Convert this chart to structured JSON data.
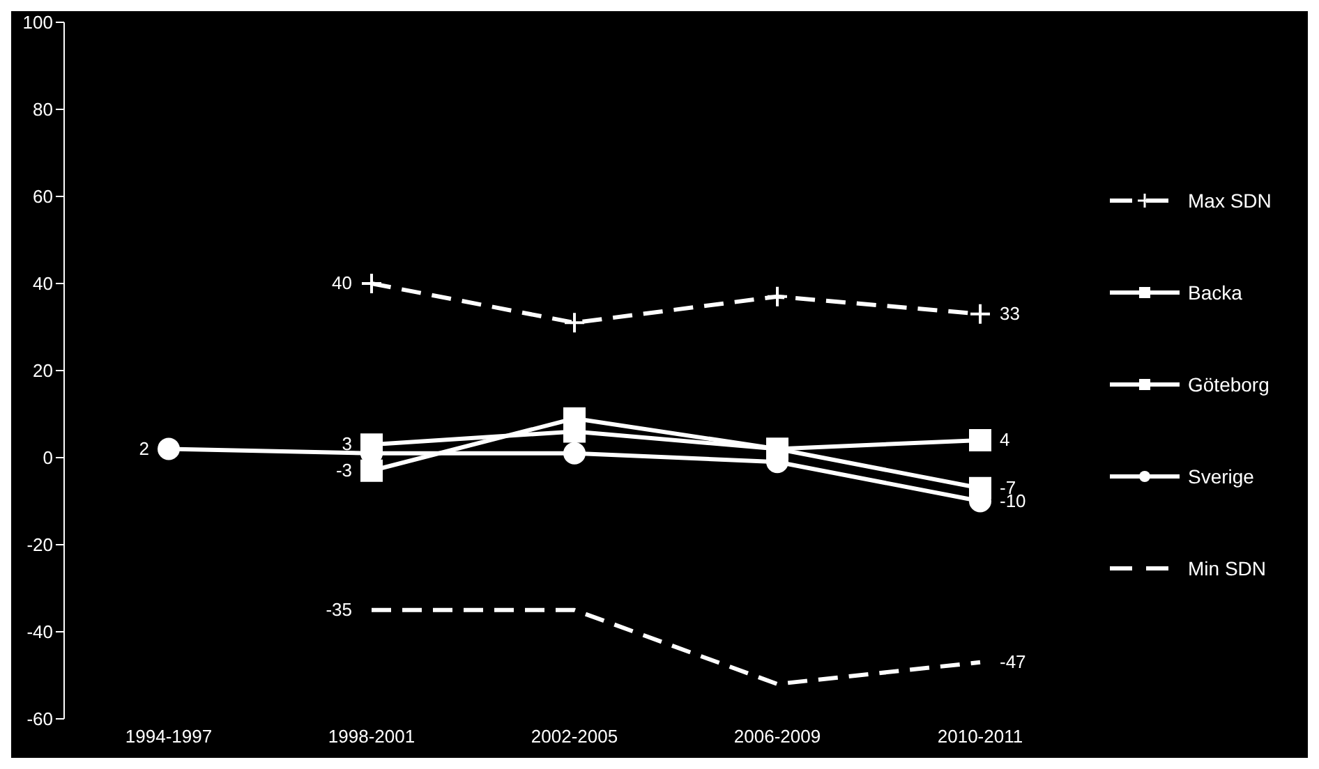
{
  "chart_data": {
    "type": "line",
    "categories": [
      "1994-1997",
      "1998-2001",
      "2002-2005",
      "2006-2009",
      "2010-2011"
    ],
    "ylim": [
      -60,
      100
    ],
    "yticks": [
      -60,
      -40,
      -20,
      0,
      20,
      40,
      60,
      80,
      100
    ],
    "legend": "right",
    "series": [
      {
        "name": "Max SDN",
        "color": "#ffffff",
        "marker": "cross",
        "line_style": "dashed",
        "values": [
          null,
          40,
          31,
          37,
          33
        ],
        "value_labels": [
          null,
          "40",
          null,
          null,
          "33"
        ]
      },
      {
        "name": "Backa",
        "color": "#ffffff",
        "marker": "square",
        "line_style": "solid",
        "values": [
          null,
          3,
          6,
          2,
          4
        ],
        "value_labels": [
          null,
          "3",
          null,
          null,
          "4"
        ]
      },
      {
        "name": "Göteborg",
        "color": "#ffffff",
        "marker": "square",
        "line_style": "solid",
        "values": [
          null,
          -3,
          9,
          2,
          -7
        ],
        "value_labels": [
          null,
          "-3",
          null,
          null,
          "-7"
        ]
      },
      {
        "name": "Sverige",
        "color": "#ffffff",
        "marker": "circle",
        "line_style": "solid",
        "values": [
          2,
          1,
          1,
          -1,
          -10
        ],
        "value_labels": [
          "2",
          null,
          null,
          null,
          "-10"
        ]
      },
      {
        "name": "Min SDN",
        "color": "#ffffff",
        "marker": "none",
        "line_style": "dashed",
        "values": [
          null,
          -35,
          -35,
          -52,
          -47
        ],
        "value_labels": [
          null,
          "-35",
          null,
          null,
          "-47"
        ]
      }
    ]
  }
}
